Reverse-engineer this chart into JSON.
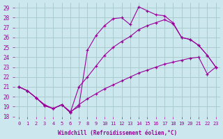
{
  "xlabel": "Windchill (Refroidissement éolien,°C)",
  "xlim": [
    -0.5,
    23.5
  ],
  "ylim": [
    18,
    29.5
  ],
  "xticks": [
    0,
    1,
    2,
    3,
    4,
    5,
    6,
    7,
    8,
    9,
    10,
    11,
    12,
    13,
    14,
    15,
    16,
    17,
    18,
    19,
    20,
    21,
    22,
    23
  ],
  "yticks": [
    18,
    19,
    20,
    21,
    22,
    23,
    24,
    25,
    26,
    27,
    28,
    29
  ],
  "background_color": "#cce8ee",
  "grid_color": "#aacccc",
  "line_color": "#990099",
  "line1_x": [
    0,
    1,
    2,
    3,
    4,
    5,
    6,
    7,
    8,
    9,
    10,
    11,
    12,
    13,
    14,
    15,
    16,
    17,
    18,
    19,
    20,
    21,
    22,
    23
  ],
  "line1_y": [
    21.0,
    20.6,
    19.9,
    19.2,
    18.8,
    19.2,
    18.5,
    19.0,
    24.7,
    26.2,
    27.2,
    27.9,
    28.0,
    27.3,
    29.1,
    28.7,
    28.3,
    28.2,
    27.5,
    26.0,
    25.8,
    25.2,
    24.2,
    23.0
  ],
  "line2_x": [
    0,
    1,
    2,
    3,
    4,
    5,
    6,
    7,
    8,
    9,
    10,
    11,
    12,
    13,
    14,
    15,
    16,
    17,
    18,
    19,
    20,
    21,
    22,
    23
  ],
  "line2_y": [
    21.0,
    20.6,
    19.9,
    19.1,
    18.8,
    19.2,
    18.4,
    21.0,
    22.0,
    23.1,
    24.2,
    25.0,
    25.6,
    26.1,
    26.8,
    27.2,
    27.5,
    27.8,
    27.4,
    26.0,
    25.8,
    25.2,
    24.2,
    23.0
  ],
  "line3_x": [
    0,
    1,
    2,
    3,
    4,
    5,
    6,
    7,
    8,
    9,
    10,
    11,
    12,
    13,
    14,
    15,
    16,
    17,
    18,
    19,
    20,
    21,
    22,
    23
  ],
  "line3_y": [
    21.0,
    20.6,
    19.9,
    19.1,
    18.8,
    19.2,
    18.4,
    19.2,
    19.8,
    20.3,
    20.8,
    21.2,
    21.6,
    22.0,
    22.4,
    22.7,
    23.0,
    23.3,
    23.5,
    23.7,
    23.9,
    24.0,
    22.3,
    23.0
  ]
}
